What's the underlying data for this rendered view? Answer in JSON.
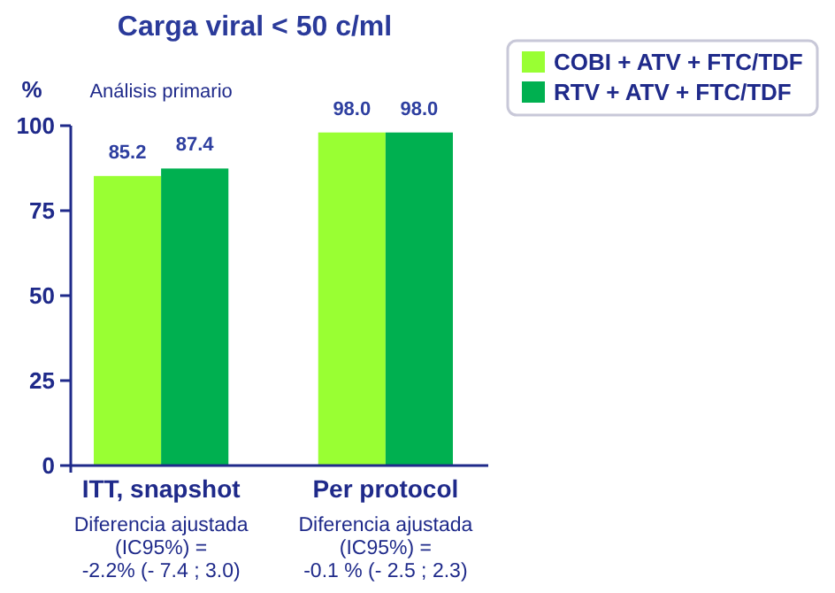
{
  "chart_data": {
    "type": "bar",
    "title": "Carga viral < 50 c/ml",
    "ylabel": "%",
    "categories": [
      "ITT, snapshot",
      "Per protocol"
    ],
    "series": [
      {
        "name": "COBI + ATV + FTC/TDF",
        "color": "#99ff33",
        "values": [
          85.2,
          98.0
        ],
        "value_labels": [
          "85.2",
          "98.0"
        ]
      },
      {
        "name": "RTV + ATV + FTC/TDF",
        "color": "#00b050",
        "values": [
          87.4,
          98.0
        ],
        "value_labels": [
          "87.4",
          "98.0"
        ]
      }
    ],
    "ylim": [
      0,
      100
    ],
    "yticks": [
      0,
      25,
      50,
      75,
      100
    ],
    "grid": false,
    "legend": "top right",
    "annotations": [
      "Análisis primario",
      "Diferencia ajustada\n(IC95%) =\n-2.2% (- 7.4 ; 3.0)",
      "Diferencia ajustada\n(IC95%) =\n-0.1 % (- 2.5 ; 2.3)"
    ]
  }
}
